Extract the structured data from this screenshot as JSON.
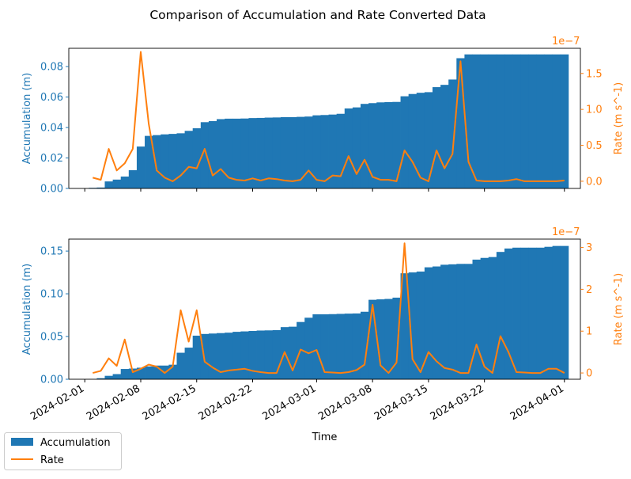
{
  "figure_title": "Comparison of Accumulation and Rate Converted Data",
  "colors": {
    "accumulation": "#1f77b4",
    "rate": "#ff7f0e",
    "axis": "#000000"
  },
  "legend": {
    "placement": "bottom-left",
    "items": [
      "Accumulation",
      "Rate"
    ]
  },
  "chart_data": [
    {
      "type": "bar",
      "panel": "top",
      "xlabel": "",
      "ylabel": "Accumulation (m)",
      "y2label": "Rate (m s^-1)",
      "y2_offset": "1e−7",
      "xlim": [
        "2024-01-30",
        "2024-04-03"
      ],
      "ylim": [
        0,
        0.092
      ],
      "y2lim": [
        -0.1,
        1.85
      ],
      "yticks": [
        "0.00",
        "0.02",
        "0.04",
        "0.06",
        "0.08"
      ],
      "y2ticks": [
        "0.0",
        "0.5",
        "1.0",
        "1.5"
      ],
      "grid": false,
      "series": [
        {
          "name": "Accumulation",
          "type": "bar",
          "x": [
            "2024-02-02",
            "2024-02-03",
            "2024-02-04",
            "2024-02-05",
            "2024-02-06",
            "2024-02-07",
            "2024-02-08",
            "2024-02-09",
            "2024-02-10",
            "2024-02-11",
            "2024-02-12",
            "2024-02-13",
            "2024-02-14",
            "2024-02-15",
            "2024-02-16",
            "2024-02-17",
            "2024-02-18",
            "2024-02-19",
            "2024-02-20",
            "2024-02-21",
            "2024-02-22",
            "2024-02-23",
            "2024-02-24",
            "2024-02-25",
            "2024-02-26",
            "2024-02-27",
            "2024-02-28",
            "2024-02-29",
            "2024-03-01",
            "2024-03-02",
            "2024-03-03",
            "2024-03-04",
            "2024-03-05",
            "2024-03-06",
            "2024-03-07",
            "2024-03-08",
            "2024-03-09",
            "2024-03-10",
            "2024-03-11",
            "2024-03-12",
            "2024-03-13",
            "2024-03-14",
            "2024-03-15",
            "2024-03-16",
            "2024-03-17",
            "2024-03-18",
            "2024-03-19",
            "2024-03-20",
            "2024-03-21",
            "2024-03-22",
            "2024-03-23",
            "2024-03-24",
            "2024-03-25",
            "2024-03-26",
            "2024-03-27",
            "2024-03-28",
            "2024-03-29",
            "2024-03-30",
            "2024-03-31",
            "2024-04-01"
          ],
          "values": [
            0.0004,
            0.0006,
            0.0046,
            0.0058,
            0.0078,
            0.012,
            0.0275,
            0.0345,
            0.035,
            0.0355,
            0.0358,
            0.0362,
            0.0378,
            0.0395,
            0.0435,
            0.0442,
            0.0455,
            0.0458,
            0.0458,
            0.0459,
            0.0462,
            0.0463,
            0.0465,
            0.0466,
            0.0468,
            0.0468,
            0.047,
            0.0472,
            0.048,
            0.0482,
            0.0485,
            0.049,
            0.0525,
            0.0532,
            0.0555,
            0.056,
            0.0565,
            0.0567,
            0.0568,
            0.0605,
            0.062,
            0.0628,
            0.0632,
            0.0665,
            0.068,
            0.0715,
            0.0855,
            0.088,
            0.088,
            0.088,
            0.088,
            0.088,
            0.088,
            0.088,
            0.088,
            0.088,
            0.088,
            0.088,
            0.088,
            0.088
          ]
        },
        {
          "name": "Rate",
          "type": "line",
          "axis": "right",
          "x": [
            "2024-02-02",
            "2024-02-03",
            "2024-02-04",
            "2024-02-05",
            "2024-02-06",
            "2024-02-07",
            "2024-02-08",
            "2024-02-09",
            "2024-02-10",
            "2024-02-11",
            "2024-02-12",
            "2024-02-13",
            "2024-02-14",
            "2024-02-15",
            "2024-02-16",
            "2024-02-17",
            "2024-02-18",
            "2024-02-19",
            "2024-02-20",
            "2024-02-21",
            "2024-02-22",
            "2024-02-23",
            "2024-02-24",
            "2024-02-25",
            "2024-02-26",
            "2024-02-27",
            "2024-02-28",
            "2024-02-29",
            "2024-03-01",
            "2024-03-02",
            "2024-03-03",
            "2024-03-04",
            "2024-03-05",
            "2024-03-06",
            "2024-03-07",
            "2024-03-08",
            "2024-03-09",
            "2024-03-10",
            "2024-03-11",
            "2024-03-12",
            "2024-03-13",
            "2024-03-14",
            "2024-03-15",
            "2024-03-16",
            "2024-03-17",
            "2024-03-18",
            "2024-03-19",
            "2024-03-20",
            "2024-03-21",
            "2024-03-22",
            "2024-03-23",
            "2024-03-24",
            "2024-03-25",
            "2024-03-26",
            "2024-03-27",
            "2024-03-28",
            "2024-03-29",
            "2024-03-30",
            "2024-03-31",
            "2024-04-01"
          ],
          "values": [
            0.05,
            0.02,
            0.45,
            0.15,
            0.25,
            0.45,
            1.8,
            0.8,
            0.15,
            0.05,
            0.0,
            0.08,
            0.2,
            0.18,
            0.45,
            0.08,
            0.17,
            0.05,
            0.02,
            0.01,
            0.04,
            0.01,
            0.04,
            0.03,
            0.01,
            0.0,
            0.02,
            0.15,
            0.02,
            0.0,
            0.08,
            0.07,
            0.35,
            0.1,
            0.3,
            0.06,
            0.02,
            0.02,
            0.0,
            0.43,
            0.27,
            0.05,
            0.0,
            0.43,
            0.18,
            0.38,
            1.67,
            0.27,
            0.01,
            0.0,
            0.0,
            0.0,
            0.01,
            0.03,
            0.0,
            0.0,
            0.0,
            0.0,
            0.0,
            0.01
          ]
        }
      ]
    },
    {
      "type": "bar",
      "panel": "bottom",
      "xlabel": "Time",
      "ylabel": "Accumulation (m)",
      "y2label": "Rate (m s^-1)",
      "y2_offset": "1e−7",
      "xlim": [
        "2024-01-30",
        "2024-04-03"
      ],
      "ylim": [
        0,
        0.164
      ],
      "y2lim": [
        -0.15,
        3.2
      ],
      "yticks": [
        "0.00",
        "0.05",
        "0.10",
        "0.15"
      ],
      "y2ticks": [
        "0",
        "1",
        "2",
        "3"
      ],
      "xticks": [
        "2024-02-01",
        "2024-02-08",
        "2024-02-15",
        "2024-02-22",
        "2024-03-01",
        "2024-03-08",
        "2024-03-15",
        "2024-03-22",
        "2024-04-01"
      ],
      "grid": false,
      "series": [
        {
          "name": "Accumulation",
          "type": "bar",
          "x": [
            "2024-02-02",
            "2024-02-03",
            "2024-02-04",
            "2024-02-05",
            "2024-02-06",
            "2024-02-07",
            "2024-02-08",
            "2024-02-09",
            "2024-02-10",
            "2024-02-11",
            "2024-02-12",
            "2024-02-13",
            "2024-02-14",
            "2024-02-15",
            "2024-02-16",
            "2024-02-17",
            "2024-02-18",
            "2024-02-19",
            "2024-02-20",
            "2024-02-21",
            "2024-02-22",
            "2024-02-23",
            "2024-02-24",
            "2024-02-25",
            "2024-02-26",
            "2024-02-27",
            "2024-02-28",
            "2024-02-29",
            "2024-03-01",
            "2024-03-02",
            "2024-03-03",
            "2024-03-04",
            "2024-03-05",
            "2024-03-06",
            "2024-03-07",
            "2024-03-08",
            "2024-03-09",
            "2024-03-10",
            "2024-03-11",
            "2024-03-12",
            "2024-03-13",
            "2024-03-14",
            "2024-03-15",
            "2024-03-16",
            "2024-03-17",
            "2024-03-18",
            "2024-03-19",
            "2024-03-20",
            "2024-03-21",
            "2024-03-22",
            "2024-03-23",
            "2024-03-24",
            "2024-03-25",
            "2024-03-26",
            "2024-03-27",
            "2024-03-28",
            "2024-03-29",
            "2024-03-30",
            "2024-03-31",
            "2024-04-01"
          ],
          "values": [
            0.0002,
            0.0012,
            0.004,
            0.006,
            0.012,
            0.0125,
            0.0135,
            0.015,
            0.016,
            0.016,
            0.017,
            0.031,
            0.037,
            0.051,
            0.053,
            0.0535,
            0.054,
            0.0545,
            0.0555,
            0.056,
            0.0565,
            0.057,
            0.0572,
            0.0575,
            0.061,
            0.0615,
            0.067,
            0.072,
            0.076,
            0.076,
            0.0762,
            0.0765,
            0.0768,
            0.077,
            0.079,
            0.093,
            0.0935,
            0.094,
            0.0955,
            0.124,
            0.125,
            0.126,
            0.131,
            0.132,
            0.134,
            0.1345,
            0.135,
            0.135,
            0.14,
            0.142,
            0.143,
            0.149,
            0.153,
            0.154,
            0.154,
            0.154,
            0.154,
            0.155,
            0.156,
            0.156
          ]
        },
        {
          "name": "Rate",
          "type": "line",
          "axis": "right",
          "x": [
            "2024-02-02",
            "2024-02-03",
            "2024-02-04",
            "2024-02-05",
            "2024-02-06",
            "2024-02-07",
            "2024-02-08",
            "2024-02-09",
            "2024-02-10",
            "2024-02-11",
            "2024-02-12",
            "2024-02-13",
            "2024-02-14",
            "2024-02-15",
            "2024-02-16",
            "2024-02-17",
            "2024-02-18",
            "2024-02-19",
            "2024-02-20",
            "2024-02-21",
            "2024-02-22",
            "2024-02-23",
            "2024-02-24",
            "2024-02-25",
            "2024-02-26",
            "2024-02-27",
            "2024-02-28",
            "2024-02-29",
            "2024-03-01",
            "2024-03-02",
            "2024-03-03",
            "2024-03-04",
            "2024-03-05",
            "2024-03-06",
            "2024-03-07",
            "2024-03-08",
            "2024-03-09",
            "2024-03-10",
            "2024-03-11",
            "2024-03-12",
            "2024-03-13",
            "2024-03-14",
            "2024-03-15",
            "2024-03-16",
            "2024-03-17",
            "2024-03-18",
            "2024-03-19",
            "2024-03-20",
            "2024-03-21",
            "2024-03-22",
            "2024-03-23",
            "2024-03-24",
            "2024-03-25",
            "2024-03-26",
            "2024-03-27",
            "2024-03-28",
            "2024-03-29",
            "2024-03-30",
            "2024-03-31",
            "2024-04-01"
          ],
          "values": [
            0.0,
            0.05,
            0.35,
            0.17,
            0.8,
            0.02,
            0.1,
            0.2,
            0.15,
            0.0,
            0.15,
            1.5,
            0.75,
            1.5,
            0.27,
            0.13,
            0.02,
            0.06,
            0.08,
            0.1,
            0.05,
            0.02,
            0.0,
            0.0,
            0.5,
            0.06,
            0.56,
            0.47,
            0.55,
            0.02,
            0.01,
            0.0,
            0.02,
            0.07,
            0.2,
            1.63,
            0.18,
            0.0,
            0.25,
            3.1,
            0.33,
            0.02,
            0.5,
            0.28,
            0.12,
            0.08,
            0.0,
            0.0,
            0.68,
            0.15,
            0.0,
            0.88,
            0.5,
            0.02,
            0.01,
            0.0,
            0.0,
            0.1,
            0.1,
            0.0
          ]
        }
      ]
    }
  ]
}
